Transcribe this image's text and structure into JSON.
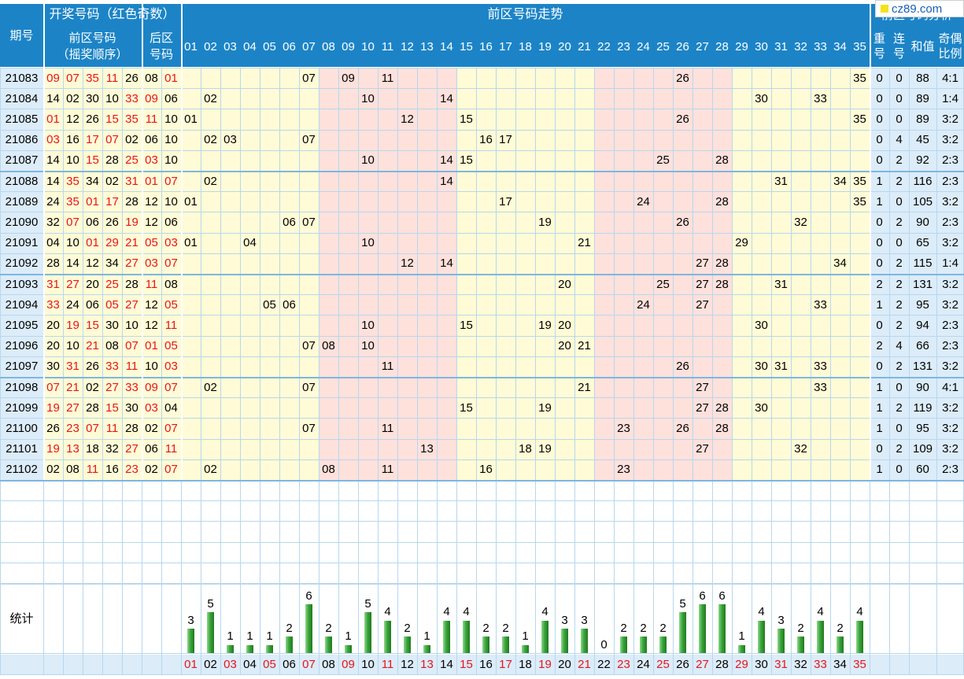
{
  "header": {
    "issue_label": "期号",
    "draw_title": "开奖号码（红色奇数）",
    "front_label_1": "前区号码",
    "front_label_2": "（摇奖顺序）",
    "back_label_1": "后区",
    "back_label_2": "号码",
    "trend_title": "前区号码走势",
    "analysis_title": "前区号码分析",
    "repeat_label_1": "重",
    "repeat_label_2": "号",
    "consec_label_1": "连",
    "consec_label_2": "号",
    "sum_label": "和值",
    "ratio_label_1": "奇偶",
    "ratio_label_2": "比例",
    "stats_label": "统计"
  },
  "watermark": "cz89.com",
  "colors": {
    "header_bg": "#1c84c6",
    "odd_red": "#e8141b",
    "band_yellow": "#fffbd6",
    "band_pink": "#ffe1dc",
    "bar_green": "#3aa53a"
  },
  "numbers": [
    "01",
    "02",
    "03",
    "04",
    "05",
    "06",
    "07",
    "08",
    "09",
    "10",
    "11",
    "12",
    "13",
    "14",
    "15",
    "16",
    "17",
    "18",
    "19",
    "20",
    "21",
    "22",
    "23",
    "24",
    "25",
    "26",
    "27",
    "28",
    "29",
    "30",
    "31",
    "32",
    "33",
    "34",
    "35"
  ],
  "rows": [
    {
      "issue": "21083",
      "front": [
        "09",
        "07",
        "35",
        "11",
        "26"
      ],
      "back": [
        "08",
        "01"
      ],
      "repeat": "0",
      "consec": "0",
      "sum": "88",
      "ratio": "4:1"
    },
    {
      "issue": "21084",
      "front": [
        "14",
        "02",
        "30",
        "10",
        "33"
      ],
      "back": [
        "09",
        "06"
      ],
      "repeat": "0",
      "consec": "0",
      "sum": "89",
      "ratio": "1:4"
    },
    {
      "issue": "21085",
      "front": [
        "01",
        "12",
        "26",
        "15",
        "35"
      ],
      "back": [
        "11",
        "10"
      ],
      "repeat": "0",
      "consec": "0",
      "sum": "89",
      "ratio": "3:2"
    },
    {
      "issue": "21086",
      "front": [
        "03",
        "16",
        "17",
        "07",
        "02"
      ],
      "back": [
        "06",
        "10"
      ],
      "repeat": "0",
      "consec": "4",
      "sum": "45",
      "ratio": "3:2"
    },
    {
      "issue": "21087",
      "front": [
        "14",
        "10",
        "15",
        "28",
        "25"
      ],
      "back": [
        "03",
        "10"
      ],
      "repeat": "0",
      "consec": "2",
      "sum": "92",
      "ratio": "2:3"
    },
    {
      "issue": "21088",
      "front": [
        "14",
        "35",
        "34",
        "02",
        "31"
      ],
      "back": [
        "01",
        "07"
      ],
      "repeat": "1",
      "consec": "2",
      "sum": "116",
      "ratio": "2:3"
    },
    {
      "issue": "21089",
      "front": [
        "24",
        "35",
        "01",
        "17",
        "28"
      ],
      "back": [
        "12",
        "10"
      ],
      "repeat": "1",
      "consec": "0",
      "sum": "105",
      "ratio": "3:2"
    },
    {
      "issue": "21090",
      "front": [
        "32",
        "07",
        "06",
        "26",
        "19"
      ],
      "back": [
        "12",
        "06"
      ],
      "repeat": "0",
      "consec": "2",
      "sum": "90",
      "ratio": "2:3"
    },
    {
      "issue": "21091",
      "front": [
        "04",
        "10",
        "01",
        "29",
        "21"
      ],
      "back": [
        "05",
        "03"
      ],
      "repeat": "0",
      "consec": "0",
      "sum": "65",
      "ratio": "3:2"
    },
    {
      "issue": "21092",
      "front": [
        "28",
        "14",
        "12",
        "34",
        "27"
      ],
      "back": [
        "03",
        "07"
      ],
      "repeat": "0",
      "consec": "2",
      "sum": "115",
      "ratio": "1:4"
    },
    {
      "issue": "21093",
      "front": [
        "31",
        "27",
        "20",
        "25",
        "28"
      ],
      "back": [
        "11",
        "08"
      ],
      "repeat": "2",
      "consec": "2",
      "sum": "131",
      "ratio": "3:2"
    },
    {
      "issue": "21094",
      "front": [
        "33",
        "24",
        "06",
        "05",
        "27"
      ],
      "back": [
        "12",
        "05"
      ],
      "repeat": "1",
      "consec": "2",
      "sum": "95",
      "ratio": "3:2"
    },
    {
      "issue": "21095",
      "front": [
        "20",
        "19",
        "15",
        "30",
        "10"
      ],
      "back": [
        "12",
        "11"
      ],
      "repeat": "0",
      "consec": "2",
      "sum": "94",
      "ratio": "2:3"
    },
    {
      "issue": "21096",
      "front": [
        "20",
        "10",
        "21",
        "08",
        "07"
      ],
      "back": [
        "01",
        "05"
      ],
      "repeat": "2",
      "consec": "4",
      "sum": "66",
      "ratio": "2:3"
    },
    {
      "issue": "21097",
      "front": [
        "30",
        "31",
        "26",
        "33",
        "11"
      ],
      "back": [
        "10",
        "03"
      ],
      "repeat": "0",
      "consec": "2",
      "sum": "131",
      "ratio": "3:2"
    },
    {
      "issue": "21098",
      "front": [
        "07",
        "21",
        "02",
        "27",
        "33"
      ],
      "back": [
        "09",
        "07"
      ],
      "repeat": "1",
      "consec": "0",
      "sum": "90",
      "ratio": "4:1"
    },
    {
      "issue": "21099",
      "front": [
        "19",
        "27",
        "28",
        "15",
        "30"
      ],
      "back": [
        "03",
        "04"
      ],
      "repeat": "1",
      "consec": "2",
      "sum": "119",
      "ratio": "3:2"
    },
    {
      "issue": "21100",
      "front": [
        "26",
        "23",
        "07",
        "11",
        "28"
      ],
      "back": [
        "02",
        "07"
      ],
      "repeat": "1",
      "consec": "0",
      "sum": "95",
      "ratio": "3:2"
    },
    {
      "issue": "21101",
      "front": [
        "19",
        "13",
        "18",
        "32",
        "27"
      ],
      "back": [
        "06",
        "11"
      ],
      "repeat": "0",
      "consec": "2",
      "sum": "109",
      "ratio": "3:2"
    },
    {
      "issue": "21102",
      "front": [
        "02",
        "08",
        "11",
        "16",
        "23"
      ],
      "back": [
        "02",
        "07"
      ],
      "repeat": "1",
      "consec": "0",
      "sum": "60",
      "ratio": "2:3"
    }
  ],
  "chart_data": {
    "type": "bar",
    "categories": [
      "01",
      "02",
      "03",
      "04",
      "05",
      "06",
      "07",
      "08",
      "09",
      "10",
      "11",
      "12",
      "13",
      "14",
      "15",
      "16",
      "17",
      "18",
      "19",
      "20",
      "21",
      "22",
      "23",
      "24",
      "25",
      "26",
      "27",
      "28",
      "29",
      "30",
      "31",
      "32",
      "33",
      "34",
      "35"
    ],
    "values": [
      3,
      5,
      1,
      1,
      1,
      2,
      6,
      2,
      1,
      5,
      4,
      2,
      1,
      4,
      4,
      2,
      2,
      1,
      4,
      3,
      3,
      0,
      2,
      2,
      2,
      5,
      6,
      6,
      1,
      4,
      3,
      2,
      4,
      2,
      4
    ],
    "title": "统计",
    "ylim": [
      0,
      6
    ]
  }
}
